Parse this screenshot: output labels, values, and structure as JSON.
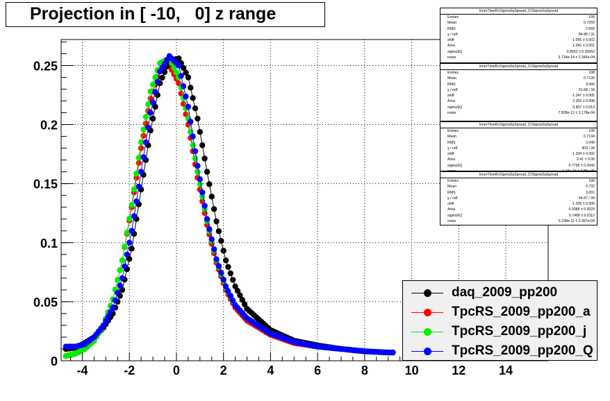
{
  "title": "Projection in [ -10,   0] z range",
  "chart_data": {
    "type": "scatter",
    "xlim": [
      -4.9,
      15.8
    ],
    "ylim": [
      0,
      0.272
    ],
    "x_ticks": [
      -4,
      -2,
      0,
      2,
      4,
      6,
      8,
      10,
      12,
      14
    ],
    "x_tick_labels": [
      "-4",
      "-2",
      "0",
      "2",
      "4",
      "6",
      "8",
      "10",
      "12",
      "14"
    ],
    "y_ticks": [
      0,
      0.05,
      0.1,
      0.15,
      0.2,
      0.25
    ],
    "y_tick_labels": [
      "0",
      "0.05",
      "0.1",
      "0.15",
      "0.2",
      "0.25"
    ],
    "grid": true,
    "legend_position": "bottom-right",
    "series": [
      {
        "name": "daq_2009_pp200",
        "color": "#000000",
        "peak_x": -0.1,
        "peak_y": 0.257,
        "x": [
          -4.7,
          -4.3,
          -3.9,
          -3.5,
          -3.1,
          -2.7,
          -2.3,
          -1.9,
          -1.5,
          -1.1,
          -0.7,
          -0.3,
          0.1,
          0.5,
          0.9,
          1.3,
          1.7,
          2.1,
          2.5,
          3.0,
          4.0,
          5.0,
          6.0,
          7.0,
          8.0,
          9.0
        ],
        "y": [
          0.01,
          0.011,
          0.015,
          0.02,
          0.028,
          0.04,
          0.06,
          0.095,
          0.145,
          0.195,
          0.235,
          0.254,
          0.256,
          0.24,
          0.205,
          0.16,
          0.118,
          0.085,
          0.063,
          0.044,
          0.026,
          0.017,
          0.013,
          0.01,
          0.008,
          0.007
        ]
      },
      {
        "name": "TpcRS_2009_pp200_a",
        "color": "#ff0000",
        "peak_x": -0.4,
        "peak_y": 0.25,
        "x": [
          -4.7,
          -4.3,
          -3.9,
          -3.5,
          -3.1,
          -2.7,
          -2.3,
          -1.9,
          -1.5,
          -1.1,
          -0.7,
          -0.3,
          0.1,
          0.5,
          0.9,
          1.3,
          1.7,
          2.1,
          2.5,
          3.0,
          4.0,
          5.0,
          6.0,
          7.0,
          8.0,
          9.0
        ],
        "y": [
          0.004,
          0.006,
          0.01,
          0.017,
          0.03,
          0.052,
          0.085,
          0.13,
          0.18,
          0.222,
          0.246,
          0.25,
          0.235,
          0.2,
          0.155,
          0.115,
          0.083,
          0.06,
          0.045,
          0.034,
          0.022,
          0.015,
          0.012,
          0.01,
          0.008,
          0.007
        ]
      },
      {
        "name": "TpcRS_2009_pp200_j",
        "color": "#00ee00",
        "peak_x": -0.5,
        "peak_y": 0.256,
        "x": [
          -4.7,
          -4.3,
          -3.9,
          -3.5,
          -3.1,
          -2.7,
          -2.3,
          -1.9,
          -1.5,
          -1.1,
          -0.7,
          -0.3,
          0.1,
          0.5,
          0.9,
          1.3,
          1.7,
          2.1,
          2.5,
          3.0,
          4.0,
          5.0,
          6.0,
          7.0,
          8.0,
          9.0
        ],
        "y": [
          0.004,
          0.006,
          0.01,
          0.017,
          0.03,
          0.052,
          0.085,
          0.132,
          0.185,
          0.228,
          0.252,
          0.256,
          0.24,
          0.205,
          0.16,
          0.118,
          0.085,
          0.062,
          0.047,
          0.036,
          0.023,
          0.016,
          0.012,
          0.01,
          0.008,
          0.007
        ]
      },
      {
        "name": "TpcRS_2009_pp200_Q",
        "color": "#0000ff",
        "peak_x": -0.2,
        "peak_y": 0.258,
        "x": [
          -4.7,
          -4.3,
          -3.9,
          -3.5,
          -3.1,
          -2.7,
          -2.3,
          -1.9,
          -1.5,
          -1.1,
          -0.7,
          -0.3,
          0.1,
          0.5,
          0.9,
          1.3,
          1.7,
          2.1,
          2.5,
          3.0,
          4.0,
          5.0,
          6.0,
          7.0,
          8.0,
          9.0
        ],
        "y": [
          0.012,
          0.012,
          0.014,
          0.02,
          0.03,
          0.045,
          0.07,
          0.11,
          0.16,
          0.21,
          0.245,
          0.258,
          0.25,
          0.215,
          0.165,
          0.12,
          0.086,
          0.063,
          0.047,
          0.036,
          0.023,
          0.016,
          0.012,
          0.01,
          0.008,
          0.007
        ]
      }
    ]
  },
  "stats_boxes": [
    {
      "title": "InnerTimeRcSigmaSqSpread_21SigmaSqSpread",
      "rows": [
        [
          "Entries",
          "199"
        ],
        [
          "Mean",
          "0.7259"
        ],
        [
          "RMS",
          "2.669"
        ],
        [
          "χ  / ndf",
          "84.86 / 31"
        ],
        [
          "shift",
          "-1.056 ± 0.002"
        ],
        [
          "Area",
          "1.041 ± 0.001"
        ],
        [
          "sigmaSQ",
          "0.8562 ± 0.00062"
        ],
        [
          "noise",
          "3.724e-14 ± 2.345e-04"
        ]
      ]
    },
    {
      "title": "InnerTimeRcSigmaSqSpread_21SigmaSqSpread",
      "rows": [
        [
          "Entries",
          "198"
        ],
        [
          "Mean",
          "0.7126"
        ],
        [
          "RMS",
          "3.066"
        ],
        [
          "χ  / ndf",
          "91.68 / 34"
        ],
        [
          "shift",
          "-1.347 ± 0.005"
        ],
        [
          "Area",
          "2.365 ± 0.008"
        ],
        [
          "sigmaSQ",
          "0.807 ± 0.013"
        ],
        [
          "noise",
          "7.828e-12 ± 3.178e-04"
        ]
      ]
    },
    {
      "title": "InnerTimeRcSigmaSqSpread_21SigmaSqSpread",
      "rows": [
        [
          "Entries",
          "199"
        ],
        [
          "Mean",
          "0.7134"
        ],
        [
          "RMS",
          "3.049"
        ],
        [
          "χ  / ndf",
          "403 / 34"
        ],
        [
          "shift",
          "-1.334 ± 0.002"
        ],
        [
          "Area",
          "2.41 ± 0.00"
        ],
        [
          "sigmaSQ",
          "0.7795 ± 0.0043"
        ],
        [
          "noise",
          "1.19e-15 ± 3.85e-05"
        ]
      ]
    },
    {
      "title": "InnerTimeRcSigmaSqSpread_21SigmaSqSpread",
      "rows": [
        [
          "Entries",
          "199"
        ],
        [
          "Mean",
          "0.732"
        ],
        [
          "RMS",
          "3.001"
        ],
        [
          "χ  / ndf",
          "54.87 / 34"
        ],
        [
          "shift",
          "-1.206 ± 0.005"
        ],
        [
          "Area",
          "0.9388 ± 0.0029"
        ],
        [
          "sigmaSQ",
          "0.7468 ± 0.0112"
        ],
        [
          "noise",
          "5.238e-11 ± 3.397e-04"
        ]
      ]
    }
  ],
  "legend": [
    {
      "label": "daq_2009_pp200",
      "color": "#000000"
    },
    {
      "label": "TpcRS_2009_pp200_a",
      "color": "#ff0000"
    },
    {
      "label": "TpcRS_2009_pp200_j",
      "color": "#00ee00"
    },
    {
      "label": "TpcRS_2009_pp200_Q",
      "color": "#0000ff"
    }
  ]
}
